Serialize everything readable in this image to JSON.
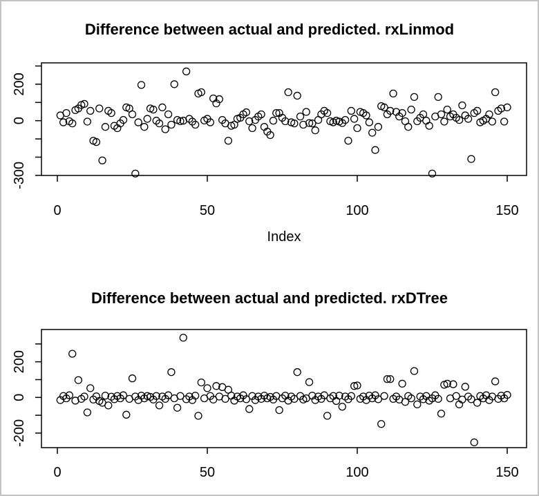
{
  "window": {
    "background_color": "#ffffff",
    "border_color": "#c3c3c3"
  },
  "chart_data": [
    {
      "type": "scatter",
      "title": "Difference between actual and predicted. rxLinmod",
      "xlabel": "Index",
      "ylabel": "",
      "marker": "open-circle",
      "marker_color": "#000000",
      "grid": false,
      "xlim": [
        -5,
        156
      ],
      "ylim": [
        -301,
        317
      ],
      "x_axis": {
        "ticks": [
          0,
          50,
          100,
          150
        ],
        "labels": [
          "0",
          "50",
          "100",
          "150"
        ]
      },
      "y_axis": {
        "ticks": [
          300,
          200,
          100,
          0,
          -100,
          -200,
          -300
        ],
        "labeled_ticks": [
          {
            "v": 200,
            "t": "200"
          },
          {
            "v": 0,
            "t": "0"
          },
          {
            "v": -300,
            "t": "-300"
          }
        ]
      },
      "x_start": 1,
      "values": [
        29,
        -9,
        42,
        -3,
        -15,
        58,
        67,
        86,
        92,
        -5,
        54,
        -110,
        -117,
        67,
        -218,
        -34,
        54,
        42,
        -28,
        -41,
        -15,
        4,
        73,
        67,
        35,
        -290,
        -9,
        196,
        -34,
        10,
        67,
        61,
        0,
        -15,
        73,
        -47,
        35,
        -22,
        200,
        4,
        -3,
        0,
        270,
        10,
        -5,
        -22,
        149,
        156,
        1,
        10,
        -9,
        122,
        95,
        118,
        4,
        -15,
        -110,
        -28,
        -22,
        10,
        16,
        35,
        46,
        -3,
        -41,
        4,
        23,
        35,
        -34,
        -60,
        -79,
        0,
        42,
        42,
        16,
        -3,
        156,
        -9,
        -15,
        137,
        23,
        -22,
        48,
        -13,
        -15,
        -53,
        4,
        35,
        54,
        42,
        -3,
        -9,
        0,
        -5,
        -13,
        4,
        -110,
        54,
        10,
        -41,
        48,
        42,
        29,
        -9,
        -66,
        -161,
        -34,
        80,
        73,
        35,
        54,
        149,
        48,
        23,
        42,
        -3,
        -34,
        61,
        130,
        -3,
        16,
        35,
        0,
        -28,
        -290,
        23,
        130,
        35,
        -5,
        61,
        23,
        35,
        16,
        4,
        84,
        29,
        10,
        -210,
        42,
        54,
        -9,
        0,
        10,
        35,
        -5,
        156,
        54,
        67,
        -5,
        73
      ]
    },
    {
      "type": "scatter",
      "title": "Difference between actual and predicted. rxDTree",
      "xlabel": "",
      "ylabel": "",
      "marker": "open-circle",
      "marker_color": "#000000",
      "grid": false,
      "xlim": [
        -5,
        156
      ],
      "ylim": [
        -282,
        381
      ],
      "x_axis": {
        "ticks": [
          0,
          50,
          100,
          150
        ],
        "labels": [
          "0",
          "50",
          "100",
          "150"
        ]
      },
      "y_axis": {
        "ticks": [
          300,
          200,
          100,
          0,
          -100,
          -200
        ],
        "labeled_ticks": [
          {
            "v": 200,
            "t": "200"
          },
          {
            "v": 0,
            "t": "0"
          },
          {
            "v": -200,
            "t": "-200"
          }
        ]
      },
      "x_start": 1,
      "values": [
        -15,
        8,
        -5,
        12,
        245,
        -18,
        97,
        -8,
        5,
        -84,
        52,
        -12,
        6,
        -20,
        -30,
        10,
        -45,
        4,
        -10,
        8,
        -5,
        12,
        -97,
        -8,
        107,
        5,
        -15,
        10,
        -5,
        8,
        3,
        -12,
        8,
        -45,
        5,
        -8,
        12,
        142,
        -5,
        -58,
        8,
        335,
        -10,
        5,
        -15,
        10,
        -103,
        84,
        -5,
        52,
        8,
        -12,
        64,
        5,
        58,
        -8,
        43,
        10,
        -18,
        5,
        -5,
        12,
        -10,
        -65,
        8,
        -15,
        5,
        -8,
        10,
        -5,
        3,
        -12,
        8,
        -71,
        -5,
        10,
        -18,
        5,
        -8,
        142,
        8,
        -12,
        -5,
        86,
        10,
        -15,
        5,
        -8,
        12,
        -103,
        -5,
        8,
        -20,
        10,
        -52,
        5,
        -10,
        8,
        64,
        67,
        -8,
        5,
        -15,
        10,
        -5,
        12,
        -10,
        -149,
        8,
        103,
        103,
        -8,
        5,
        -12,
        77,
        -25,
        8,
        -5,
        148,
        -39,
        5,
        -10,
        8,
        -18,
        -5,
        12,
        -8,
        -91,
        71,
        77,
        -5,
        74,
        8,
        -39,
        -12,
        60,
        5,
        -10,
        -252,
        -30,
        8,
        -5,
        12,
        -15,
        5,
        90,
        -8,
        10,
        -5,
        14
      ]
    }
  ]
}
